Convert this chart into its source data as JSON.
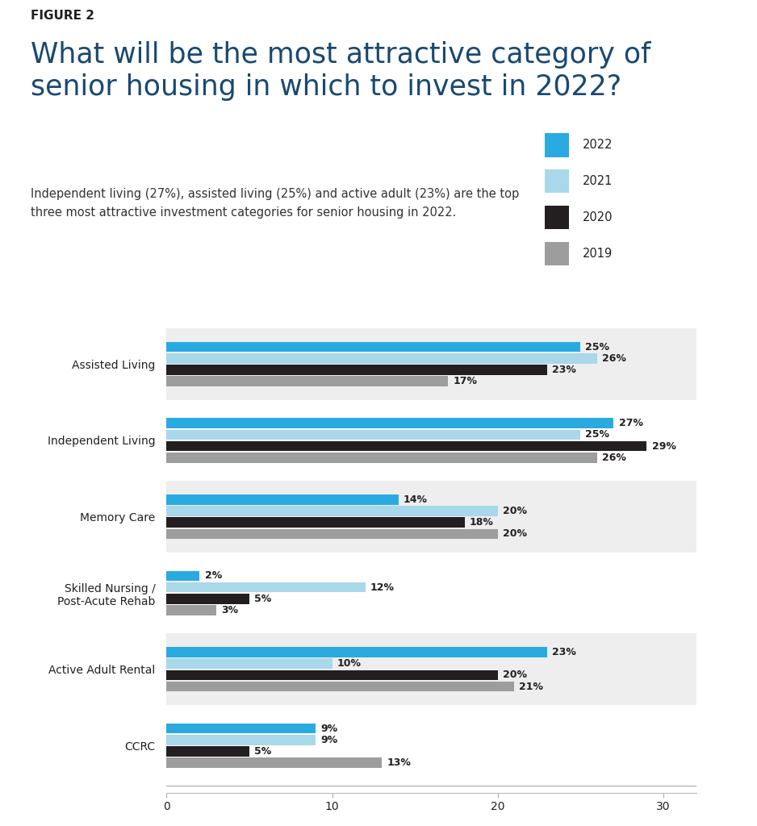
{
  "figure_label": "FIGURE 2",
  "title": "What will be the most attractive category of\nsenior housing in which to invest in 2022?",
  "subtitle": "Independent living (27%), assisted living (25%) and active adult (23%) are the top\nthree most attractive investment categories for senior housing in 2022.",
  "categories": [
    "Assisted Living",
    "Independent Living",
    "Memory Care",
    "Skilled Nursing /\nPost-Acute Rehab",
    "Active Adult Rental",
    "CCRC"
  ],
  "years": [
    "2022",
    "2021",
    "2020",
    "2019"
  ],
  "colors": {
    "2022": "#29ABE2",
    "2021": "#A8D8EA",
    "2020": "#231F20",
    "2019": "#9D9D9D"
  },
  "data": {
    "Assisted Living": [
      25,
      26,
      23,
      17
    ],
    "Independent Living": [
      27,
      25,
      29,
      26
    ],
    "Memory Care": [
      14,
      20,
      18,
      20
    ],
    "Skilled Nursing /\nPost-Acute Rehab": [
      2,
      12,
      5,
      3
    ],
    "Active Adult Rental": [
      23,
      10,
      20,
      21
    ],
    "CCRC": [
      9,
      9,
      5,
      13
    ]
  },
  "xlim": [
    0,
    32
  ],
  "xticks": [
    0,
    10,
    20,
    30
  ],
  "bar_height": 0.15,
  "background_color": "#FFFFFF",
  "band_color": "#EEEEEE",
  "title_color": "#1A4971",
  "figure_label_color": "#231F20",
  "text_color": "#231F20",
  "subtitle_color": "#333333",
  "legend_colors_order": [
    "2022",
    "2021",
    "2020",
    "2019"
  ]
}
